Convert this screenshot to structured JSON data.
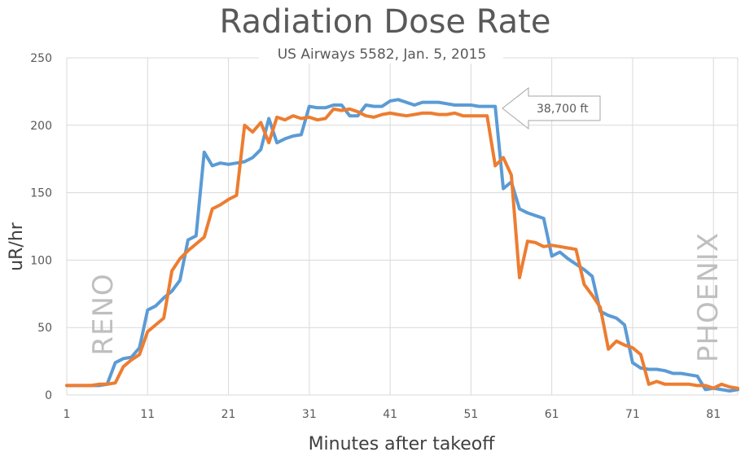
{
  "chart_data": {
    "type": "line",
    "title": "Radiation Dose Rate",
    "subtitle": "US Airways 5582, Jan. 5, 2015",
    "xlabel": "Minutes after takeoff",
    "ylabel": "uR/hr",
    "xlim": [
      1,
      84
    ],
    "ylim": [
      0,
      250
    ],
    "xticks": [
      1,
      11,
      21,
      31,
      41,
      51,
      61,
      71,
      81
    ],
    "yticks": [
      0,
      50,
      100,
      150,
      200,
      250
    ],
    "grid": "vertical and horizontal",
    "legend": "none",
    "annotations": {
      "altitude": "38,700 ft",
      "origin": "RENO",
      "destination": "PHOENIX"
    },
    "series": [
      {
        "color": "#5b9bd5",
        "points": [
          [
            1,
            7
          ],
          [
            2,
            7
          ],
          [
            3,
            7
          ],
          [
            4,
            7
          ],
          [
            5,
            7
          ],
          [
            6,
            8
          ],
          [
            7,
            24
          ],
          [
            8,
            27
          ],
          [
            9,
            28
          ],
          [
            10,
            35
          ],
          [
            11,
            63
          ],
          [
            12,
            66
          ],
          [
            13,
            72
          ],
          [
            14,
            77
          ],
          [
            15,
            85
          ],
          [
            16,
            115
          ],
          [
            17,
            118
          ],
          [
            18,
            180
          ],
          [
            19,
            170
          ],
          [
            20,
            172
          ],
          [
            21,
            171
          ],
          [
            22,
            172
          ],
          [
            23,
            173
          ],
          [
            24,
            176
          ],
          [
            25,
            182
          ],
          [
            26,
            205
          ],
          [
            27,
            187
          ],
          [
            28,
            190
          ],
          [
            29,
            192
          ],
          [
            30,
            193
          ],
          [
            31,
            214
          ],
          [
            32,
            213
          ],
          [
            33,
            213
          ],
          [
            34,
            215
          ],
          [
            35,
            215
          ],
          [
            36,
            207
          ],
          [
            37,
            207
          ],
          [
            38,
            215
          ],
          [
            39,
            214
          ],
          [
            40,
            214
          ],
          [
            41,
            218
          ],
          [
            42,
            219
          ],
          [
            43,
            217
          ],
          [
            44,
            215
          ],
          [
            45,
            217
          ],
          [
            46,
            217
          ],
          [
            47,
            217
          ],
          [
            48,
            216
          ],
          [
            49,
            215
          ],
          [
            50,
            215
          ],
          [
            51,
            215
          ],
          [
            52,
            214
          ],
          [
            53,
            214
          ],
          [
            54,
            214
          ],
          [
            55,
            153
          ],
          [
            56,
            158
          ],
          [
            57,
            138
          ],
          [
            58,
            135
          ],
          [
            59,
            133
          ],
          [
            60,
            131
          ],
          [
            61,
            103
          ],
          [
            62,
            106
          ],
          [
            63,
            101
          ],
          [
            64,
            97
          ],
          [
            65,
            93
          ],
          [
            66,
            88
          ],
          [
            67,
            62
          ],
          [
            68,
            59
          ],
          [
            69,
            57
          ],
          [
            70,
            52
          ],
          [
            71,
            24
          ],
          [
            72,
            20
          ],
          [
            73,
            19
          ],
          [
            74,
            19
          ],
          [
            75,
            18
          ],
          [
            76,
            16
          ],
          [
            77,
            16
          ],
          [
            78,
            15
          ],
          [
            79,
            14
          ],
          [
            80,
            4
          ],
          [
            81,
            5
          ],
          [
            82,
            4
          ],
          [
            83,
            3
          ],
          [
            84,
            4
          ]
        ]
      },
      {
        "color": "#ed7d31",
        "points": [
          [
            1,
            7
          ],
          [
            2,
            7
          ],
          [
            3,
            7
          ],
          [
            4,
            7
          ],
          [
            5,
            8
          ],
          [
            6,
            8
          ],
          [
            7,
            9
          ],
          [
            8,
            21
          ],
          [
            9,
            26
          ],
          [
            10,
            30
          ],
          [
            11,
            47
          ],
          [
            12,
            52
          ],
          [
            13,
            57
          ],
          [
            14,
            92
          ],
          [
            15,
            101
          ],
          [
            16,
            107
          ],
          [
            17,
            112
          ],
          [
            18,
            117
          ],
          [
            19,
            138
          ],
          [
            20,
            141
          ],
          [
            21,
            145
          ],
          [
            22,
            148
          ],
          [
            23,
            200
          ],
          [
            24,
            195
          ],
          [
            25,
            202
          ],
          [
            26,
            187
          ],
          [
            27,
            206
          ],
          [
            28,
            204
          ],
          [
            29,
            207
          ],
          [
            30,
            205
          ],
          [
            31,
            206
          ],
          [
            32,
            204
          ],
          [
            33,
            205
          ],
          [
            34,
            212
          ],
          [
            35,
            211
          ],
          [
            36,
            212
          ],
          [
            37,
            210
          ],
          [
            38,
            207
          ],
          [
            39,
            206
          ],
          [
            40,
            208
          ],
          [
            41,
            209
          ],
          [
            42,
            208
          ],
          [
            43,
            207
          ],
          [
            44,
            208
          ],
          [
            45,
            209
          ],
          [
            46,
            209
          ],
          [
            47,
            208
          ],
          [
            48,
            208
          ],
          [
            49,
            209
          ],
          [
            50,
            207
          ],
          [
            51,
            207
          ],
          [
            52,
            207
          ],
          [
            53,
            207
          ],
          [
            54,
            170
          ],
          [
            55,
            176
          ],
          [
            56,
            163
          ],
          [
            57,
            87
          ],
          [
            58,
            114
          ],
          [
            59,
            113
          ],
          [
            60,
            110
          ],
          [
            61,
            111
          ],
          [
            62,
            110
          ],
          [
            63,
            109
          ],
          [
            64,
            108
          ],
          [
            65,
            82
          ],
          [
            66,
            74
          ],
          [
            67,
            65
          ],
          [
            68,
            34
          ],
          [
            69,
            40
          ],
          [
            70,
            37
          ],
          [
            71,
            35
          ],
          [
            72,
            30
          ],
          [
            73,
            8
          ],
          [
            74,
            10
          ],
          [
            75,
            8
          ],
          [
            76,
            8
          ],
          [
            77,
            8
          ],
          [
            78,
            8
          ],
          [
            79,
            7
          ],
          [
            80,
            7
          ],
          [
            81,
            5
          ],
          [
            82,
            8
          ],
          [
            83,
            6
          ],
          [
            84,
            5
          ]
        ]
      }
    ]
  }
}
